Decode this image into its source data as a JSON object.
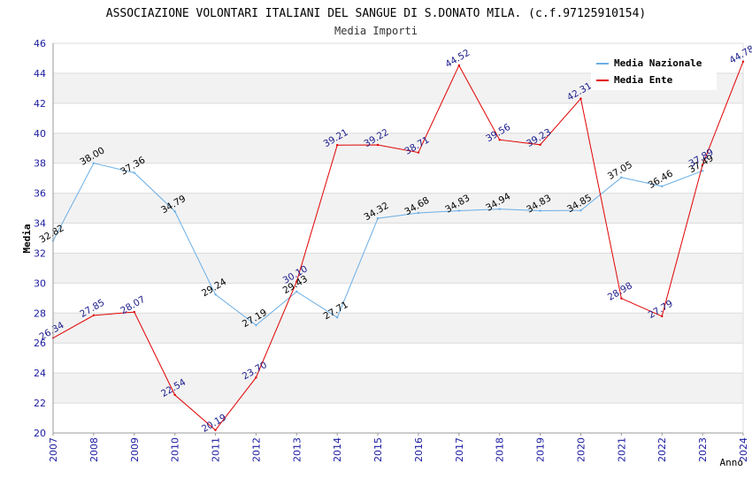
{
  "chart_data": {
    "type": "line",
    "title": "ASSOCIAZIONE VOLONTARI ITALIANI DEL SANGUE DI S.DONATO MILA. (c.f.97125910154)",
    "subtitle": "Media Importi",
    "xlabel": "Anno",
    "ylabel": "Media",
    "ylim": [
      20,
      46
    ],
    "yticks": [
      "20",
      "22",
      "24",
      "26",
      "28",
      "30",
      "32",
      "34",
      "36",
      "38",
      "40",
      "42",
      "44",
      "46"
    ],
    "categories": [
      "2007",
      "2008",
      "2009",
      "2010",
      "2011",
      "2012",
      "2013",
      "2014",
      "2015",
      "2016",
      "2017",
      "2018",
      "2019",
      "2020",
      "2021",
      "2022",
      "2023",
      "2024"
    ],
    "legend_position": "top-right",
    "series": [
      {
        "name": "Media Nazionale",
        "color": "#6aaee6",
        "label_color": "#000000",
        "values": [
          32.82,
          38.0,
          37.36,
          34.79,
          29.24,
          27.19,
          29.43,
          27.71,
          34.32,
          34.68,
          34.83,
          34.94,
          34.83,
          34.85,
          37.05,
          36.46,
          37.49,
          null
        ],
        "labels": [
          "32.82",
          "38.00",
          "37.36",
          "34.79",
          "29.24",
          "27.19",
          "29.43",
          "27.71",
          "34.32",
          "34.68",
          "34.83",
          "34.94",
          "34.83",
          "34.85",
          "37.05",
          "36.46",
          "37.49",
          ""
        ]
      },
      {
        "name": "Media Ente",
        "color": "#e00000",
        "label_color": "#1a1a8c",
        "values": [
          26.34,
          27.85,
          28.07,
          22.54,
          20.19,
          23.7,
          30.1,
          39.21,
          39.22,
          38.71,
          44.52,
          39.56,
          39.23,
          42.31,
          28.98,
          27.79,
          37.89,
          44.78
        ],
        "labels": [
          "26.34",
          "27.85",
          "28.07",
          "22.54",
          "20.19",
          "23.70",
          "30.10",
          "39.21",
          "39.22",
          "38.71",
          "44.52",
          "39.56",
          "39.23",
          "42.31",
          "28.98",
          "27.79",
          "37.89",
          "44.78"
        ]
      }
    ],
    "colors": {
      "band": "#f2f2f2",
      "gridline": "#dcdcdc",
      "tick_text": "#1a1aa0"
    }
  }
}
